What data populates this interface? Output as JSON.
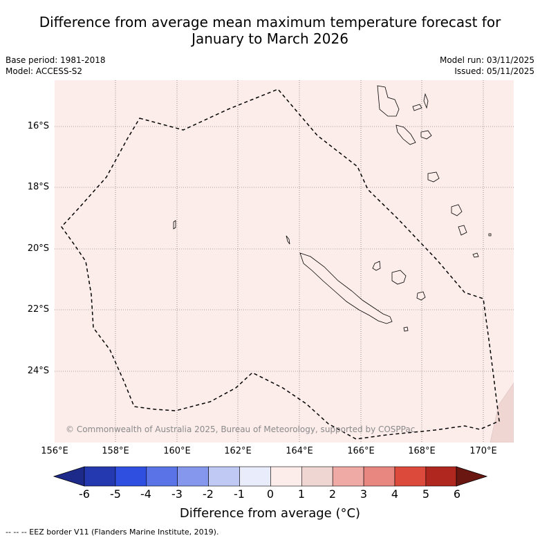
{
  "title_line1": "Difference from average mean maximum temperature forecast for",
  "title_line2": "January to March 2026",
  "base_period": "Base period: 1981-2018",
  "model": "Model: ACCESS-S2",
  "model_run": "Model run: 03/11/2025",
  "issued": "Issued: 05/11/2025",
  "latitudes": [
    "16°S",
    "18°S",
    "20°S",
    "22°S",
    "24°S"
  ],
  "longitudes": [
    "156°E",
    "158°E",
    "160°E",
    "162°E",
    "164°E",
    "166°E",
    "168°E",
    "170°E"
  ],
  "copyright": "© Commonwealth of Australia 2025, Bureau of Meteorology, supported by COSPPac",
  "colorbar": {
    "title": "Difference from average (°C)",
    "ticks": [
      "-6",
      "-5",
      "-4",
      "-3",
      "-2",
      "-1",
      "0",
      "1",
      "2",
      "3",
      "4",
      "5",
      "6"
    ],
    "colors": [
      "#1e2a8a",
      "#2438b0",
      "#2f4fe0",
      "#5a74e8",
      "#8497ec",
      "#c0c8f4",
      "#e8ecfb",
      "#fcecea",
      "#f0d6d2",
      "#f0aaa6",
      "#e8877f",
      "#dc4a3c",
      "#b0271f",
      "#6a1712"
    ],
    "map_fill": "#fcecea",
    "map_fill_corner": "#f0d6d2"
  },
  "legend_eez": "-- -- -- EEZ border V11 (Flanders Marine Institute, 2019)."
}
